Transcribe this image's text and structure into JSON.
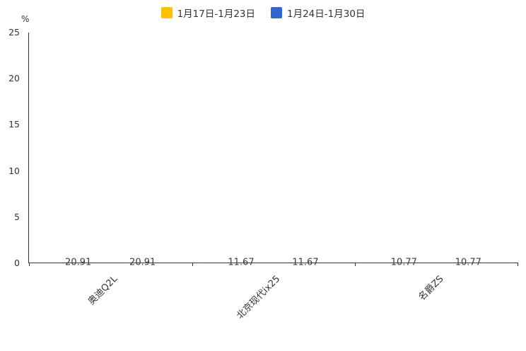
{
  "legend": {
    "items": [
      {
        "label": "1月17日-1月23日",
        "color": "#FDC101"
      },
      {
        "label": "1月24日-1月30日",
        "color": "#3366CC"
      }
    ]
  },
  "chart_data": {
    "type": "bar",
    "title": "",
    "categories": [
      "奥迪Q2L",
      "北京现代ix25",
      "名爵ZS"
    ],
    "series": [
      {
        "name": "1月17日-1月23日",
        "color": "#FDC101",
        "values": [
          20.91,
          11.67,
          10.77
        ]
      },
      {
        "name": "1月24日-1月30日",
        "color": "#3366CC",
        "values": [
          20.91,
          11.67,
          10.77
        ]
      }
    ],
    "xlabel": "",
    "ylabel": "%",
    "ylim": [
      0,
      25
    ],
    "yticks": [
      0,
      5,
      10,
      15,
      20,
      25
    ],
    "value_labels": [
      "20.91",
      "11.67",
      "10.77"
    ],
    "legend_position": "top",
    "grid": false,
    "axis_color": "#33334d"
  }
}
